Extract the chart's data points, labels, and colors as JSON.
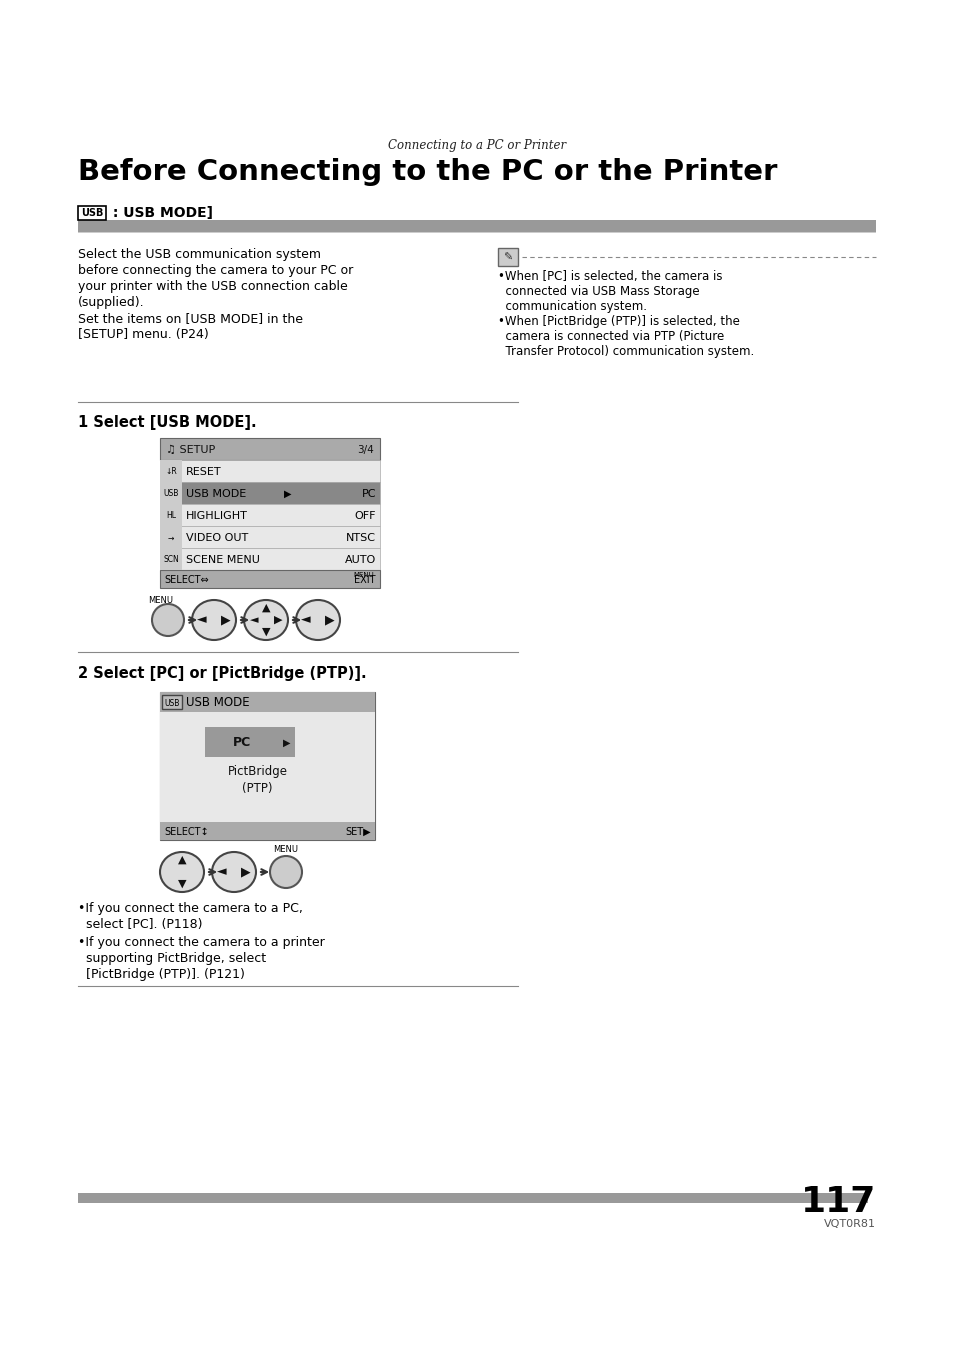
{
  "bg_color": "#ffffff",
  "italic_title": "Connecting to a PC or Printer",
  "main_title": "Before Connecting to the PC or the Printer",
  "section_label": "USB",
  "section_title": " : USB MODE]",
  "body_left": "Select the USB communication system\nbefore connecting the camera to your PC or\nyour printer with the USB connection cable\n(supplied).\nSet the items on [USB MODE] in the\n[SETUP] menu. (P24)",
  "step1_title": "1 Select [USB MODE].",
  "step2_title": "2 Select [PC] or [PictBridge (PTP)].",
  "note_line1": "•When [PC] is selected, the camera is",
  "note_line2": "  connected via USB Mass Storage",
  "note_line3": "  communication system.",
  "note_line4": "•When [PictBridge (PTP)] is selected, the",
  "note_line5": "  camera is connected via PTP (Picture",
  "note_line6": "  Transfer Protocol) communication system.",
  "bullet1_line1": "•If you connect the camera to a PC,",
  "bullet1_line2": "  select [PC]. (P118)",
  "bullet2_line1": "•If you connect the camera to a printer",
  "bullet2_line2": "  supporting PictBridge, select",
  "bullet2_line3": "  [PictBridge (PTP)]. (P121)",
  "page_number": "117",
  "page_code": "VQT0R81",
  "gray_bar": "#999999",
  "menu_header_bg": "#aaaaaa",
  "menu_row_bg": "#e8e8e8",
  "menu_selected_bg": "#888888",
  "menu_border": "#666666",
  "menu2_content_bg": "#e0e0e0"
}
